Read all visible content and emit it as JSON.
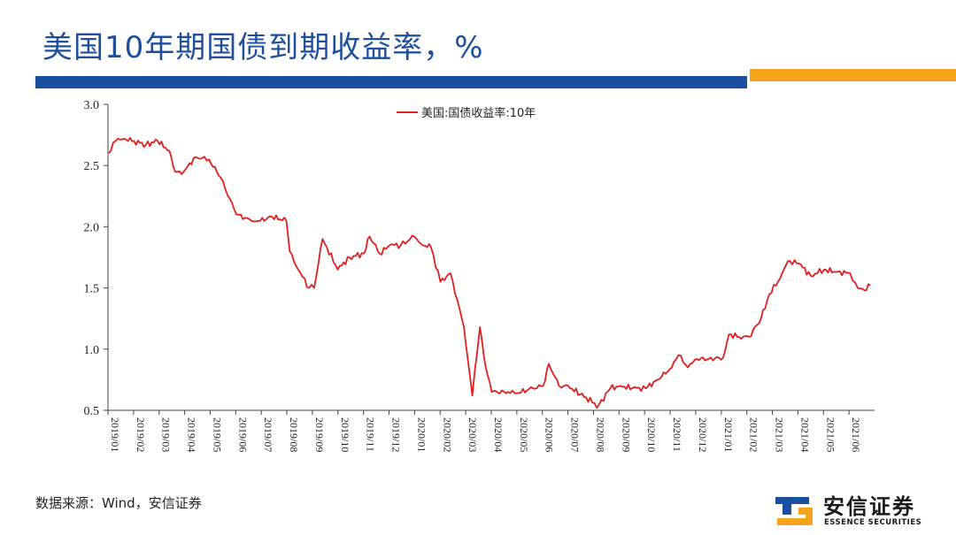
{
  "slide": {
    "title": "美国10年期国债到期收益率，%",
    "source": "数据来源：Wind，安信证券",
    "logo_cn": "安信证券",
    "logo_en": "ESSENCE SECURITIES",
    "accent_blue": "#1a4fa0",
    "accent_orange": "#f5a41c"
  },
  "chart_data": {
    "type": "line",
    "title": "",
    "xlabel": "",
    "ylabel": "",
    "ylim": [
      0.5,
      3.0
    ],
    "yticks": [
      "3.0",
      "2.5",
      "2.0",
      "1.5",
      "1.0",
      "0.5"
    ],
    "ytick_values": [
      3.0,
      2.5,
      2.0,
      1.5,
      1.0,
      0.5
    ],
    "xticks": [
      "2019/01",
      "2019/02",
      "2019/03",
      "2019/04",
      "2019/05",
      "2019/06",
      "2019/07",
      "2019/08",
      "2019/09",
      "2019/10",
      "2019/11",
      "2019/12",
      "2020/01",
      "2020/02",
      "2020/03",
      "2020/04",
      "2020/05",
      "2020/06",
      "2020/07",
      "2020/08",
      "2020/09",
      "2020/10",
      "2020/11",
      "2020/12",
      "2021/01",
      "2021/02",
      "2021/03",
      "2021/04",
      "2021/05",
      "2021/06"
    ],
    "grid": false,
    "legend": "top-center",
    "series": [
      {
        "name": "美国:国债收益率:10年",
        "color": "#e02020",
        "x": [
          "2019-01-02",
          "2019-01-10",
          "2019-01-20",
          "2019-02-01",
          "2019-02-15",
          "2019-03-01",
          "2019-03-15",
          "2019-03-22",
          "2019-04-01",
          "2019-04-15",
          "2019-05-01",
          "2019-05-15",
          "2019-05-31",
          "2019-06-03",
          "2019-06-20",
          "2019-07-01",
          "2019-07-15",
          "2019-08-01",
          "2019-08-05",
          "2019-08-15",
          "2019-08-28",
          "2019-09-03",
          "2019-09-13",
          "2019-10-01",
          "2019-10-15",
          "2019-11-01",
          "2019-11-08",
          "2019-11-20",
          "2019-12-02",
          "2019-12-15",
          "2019-12-31",
          "2020-01-08",
          "2020-01-20",
          "2020-01-31",
          "2020-02-12",
          "2020-02-28",
          "2020-03-09",
          "2020-03-18",
          "2020-03-25",
          "2020-04-01",
          "2020-04-20",
          "2020-05-01",
          "2020-05-20",
          "2020-06-01",
          "2020-06-08",
          "2020-06-20",
          "2020-07-01",
          "2020-07-15",
          "2020-08-01",
          "2020-08-04",
          "2020-08-20",
          "2020-09-01",
          "2020-09-15",
          "2020-10-01",
          "2020-10-15",
          "2020-11-01",
          "2020-11-09",
          "2020-11-20",
          "2020-12-01",
          "2020-12-15",
          "2021-01-01",
          "2021-01-08",
          "2021-01-20",
          "2021-02-01",
          "2021-02-15",
          "2021-02-25",
          "2021-03-10",
          "2021-03-19",
          "2021-04-01",
          "2021-04-15",
          "2021-05-01",
          "2021-05-15",
          "2021-06-01",
          "2021-06-10",
          "2021-06-18",
          "2021-06-25"
        ],
        "values": [
          2.6,
          2.7,
          2.72,
          2.7,
          2.67,
          2.7,
          2.62,
          2.45,
          2.45,
          2.57,
          2.55,
          2.4,
          2.14,
          2.1,
          2.05,
          2.05,
          2.08,
          2.05,
          1.8,
          1.65,
          1.5,
          1.5,
          1.9,
          1.65,
          1.75,
          1.78,
          1.92,
          1.78,
          1.85,
          1.85,
          1.92,
          1.86,
          1.83,
          1.55,
          1.62,
          1.18,
          0.62,
          1.18,
          0.85,
          0.65,
          0.65,
          0.64,
          0.68,
          0.7,
          0.88,
          0.7,
          0.7,
          0.63,
          0.56,
          0.52,
          0.68,
          0.7,
          0.68,
          0.68,
          0.75,
          0.85,
          0.95,
          0.85,
          0.92,
          0.92,
          0.93,
          1.12,
          1.1,
          1.1,
          1.25,
          1.45,
          1.58,
          1.72,
          1.7,
          1.6,
          1.65,
          1.63,
          1.62,
          1.5,
          1.48,
          1.52
        ]
      }
    ]
  }
}
